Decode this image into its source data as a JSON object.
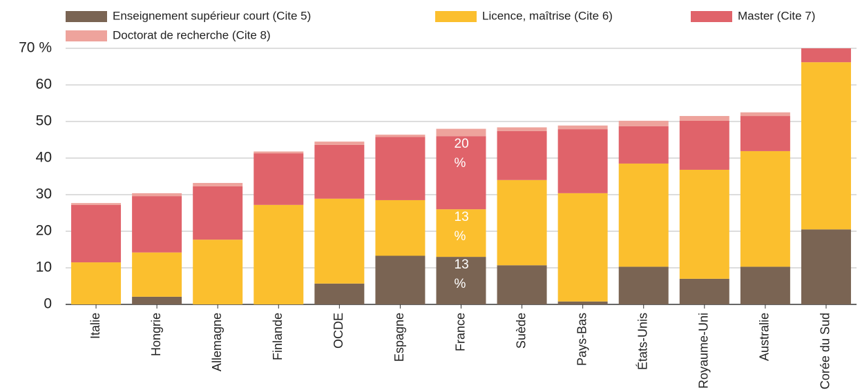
{
  "chart_data": {
    "type": "stacked_bar",
    "categories": [
      "Italie",
      "Hongrie",
      "Allemagne",
      "Finlande",
      "OCDE",
      "Espagne",
      "France",
      "Suède",
      "Pays-Bas",
      "États-Unis",
      "Royaume-Uni",
      "Australie",
      "Corée du Sud"
    ],
    "series": [
      {
        "name": "Enseignement supérieur court (Cite 5)",
        "color": "#7a6453",
        "values": [
          0,
          2.1,
          0,
          0,
          5.7,
          13.3,
          13,
          10.7,
          0.8,
          10.3,
          7,
          10.3,
          20.5
        ],
        "value_labels": [
          null,
          null,
          null,
          null,
          null,
          null,
          "13 %",
          null,
          null,
          null,
          null,
          null,
          null
        ]
      },
      {
        "name": "Licence, maîtrise (Cite 6)",
        "color": "#fbbf2e",
        "values": [
          11.5,
          12.1,
          17.7,
          27.2,
          23.2,
          15.2,
          13,
          23.3,
          29.6,
          28.2,
          29.8,
          31.6,
          45.7
        ],
        "value_labels": [
          null,
          null,
          null,
          null,
          null,
          null,
          "13 %",
          null,
          null,
          null,
          null,
          null,
          null
        ]
      },
      {
        "name": "Master (Cite 7)",
        "color": "#e0636a",
        "values": [
          15.7,
          15.4,
          14.6,
          14.1,
          14.7,
          17.3,
          20,
          13.4,
          17.5,
          10.2,
          13.4,
          9.6,
          3.8
        ],
        "value_labels": [
          null,
          null,
          null,
          null,
          null,
          null,
          "20 %",
          null,
          null,
          null,
          null,
          null,
          null
        ]
      },
      {
        "name": "Doctorat de recherche (Cite 8)",
        "color": "#eea39c",
        "values": [
          0.5,
          0.8,
          0.9,
          0.5,
          0.9,
          0.6,
          2,
          1,
          1,
          1.5,
          1.3,
          1,
          0
        ]
      }
    ],
    "ylim": [
      0,
      70
    ],
    "yticks": [
      0,
      10,
      20,
      30,
      40,
      50,
      60,
      {
        "value": 70,
        "label": "70 %"
      }
    ],
    "grid": true
  }
}
